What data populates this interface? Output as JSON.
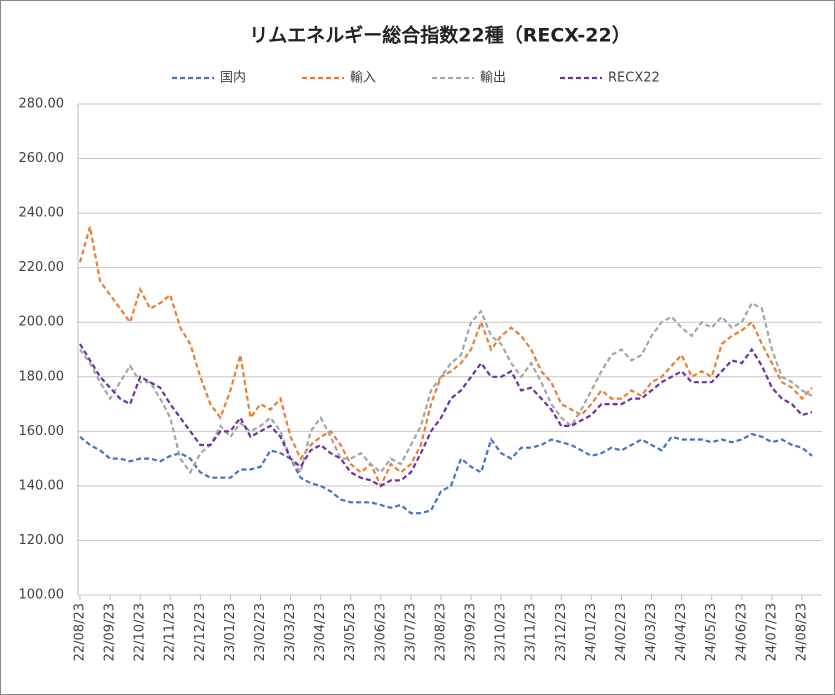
{
  "chart_data": {
    "type": "line",
    "title": "リムエネルギー総合指数22種（RECX-22）",
    "categories": [
      "22/08/23",
      null,
      null,
      "22/09/23",
      null,
      null,
      "22/10/23",
      null,
      null,
      "22/11/23",
      null,
      null,
      "22/12/23",
      null,
      null,
      "23/01/23",
      null,
      null,
      "23/02/23",
      null,
      null,
      "23/03/23",
      null,
      null,
      "23/04/23",
      null,
      null,
      "23/05/23",
      null,
      null,
      "23/06/23",
      null,
      null,
      "23/07/23",
      null,
      null,
      "23/08/23",
      null,
      null,
      "23/09/23",
      null,
      null,
      "23/10/23",
      null,
      null,
      "23/11/23",
      null,
      null,
      "23/12/23",
      null,
      null,
      "24/01/23",
      null,
      null,
      "24/02/23",
      null,
      null,
      "24/03/23",
      null,
      null,
      "24/04/23",
      null,
      null,
      "24/05/23",
      null,
      null,
      "24/06/23",
      null,
      null,
      "24/07/23",
      null,
      null,
      "24/08/23",
      null
    ],
    "series": [
      {
        "name": "国内",
        "color": "#4472c4",
        "values": [
          158,
          155,
          153,
          150,
          150,
          149,
          150,
          150,
          149,
          151,
          152,
          150,
          145,
          143,
          143,
          143,
          146,
          146,
          147,
          153,
          152,
          150,
          143,
          141,
          140,
          138,
          135,
          134,
          134,
          134,
          133,
          132,
          133,
          130,
          130,
          131,
          138,
          140,
          150,
          147,
          145,
          157,
          152,
          150,
          154,
          154,
          155,
          157,
          156,
          155,
          153,
          151,
          152,
          154,
          153,
          155,
          157,
          155,
          153,
          158,
          157,
          157,
          157,
          156,
          157,
          156,
          157,
          159,
          158,
          156,
          157,
          155,
          154,
          151
        ]
      },
      {
        "name": "輸入",
        "color": "#ed7d31",
        "values": [
          222,
          235,
          215,
          210,
          205,
          200,
          212,
          205,
          207,
          210,
          198,
          192,
          180,
          170,
          165,
          175,
          188,
          165,
          170,
          168,
          172,
          158,
          150,
          155,
          158,
          160,
          155,
          148,
          145,
          148,
          140,
          148,
          145,
          148,
          155,
          170,
          180,
          182,
          185,
          190,
          200,
          190,
          195,
          198,
          195,
          190,
          182,
          178,
          170,
          168,
          166,
          170,
          175,
          172,
          172,
          175,
          173,
          178,
          180,
          184,
          188,
          180,
          182,
          180,
          192,
          195,
          197,
          200,
          192,
          185,
          178,
          176,
          172,
          176
        ]
      },
      {
        "name": "輸出",
        "color": "#a5a5a5",
        "values": [
          190,
          185,
          178,
          172,
          178,
          184,
          178,
          178,
          172,
          165,
          150,
          145,
          152,
          155,
          162,
          158,
          163,
          160,
          162,
          165,
          160,
          150,
          145,
          160,
          165,
          158,
          150,
          150,
          152,
          148,
          145,
          150,
          148,
          155,
          162,
          175,
          180,
          185,
          188,
          200,
          204,
          195,
          192,
          185,
          180,
          185,
          178,
          170,
          165,
          162,
          168,
          175,
          182,
          188,
          190,
          186,
          188,
          195,
          200,
          202,
          198,
          195,
          200,
          198,
          202,
          198,
          200,
          207,
          205,
          190,
          180,
          178,
          175,
          173
        ]
      },
      {
        "name": "RECX22",
        "color": "#7030a0",
        "values": [
          192,
          186,
          180,
          176,
          172,
          170,
          180,
          178,
          176,
          170,
          165,
          160,
          155,
          155,
          160,
          160,
          165,
          158,
          160,
          162,
          158,
          150,
          147,
          153,
          155,
          152,
          150,
          145,
          143,
          142,
          140,
          142,
          142,
          145,
          152,
          160,
          165,
          172,
          175,
          180,
          185,
          180,
          180,
          182,
          175,
          176,
          172,
          168,
          162,
          162,
          164,
          166,
          170,
          170,
          170,
          172,
          172,
          175,
          178,
          180,
          182,
          178,
          178,
          178,
          182,
          186,
          185,
          190,
          184,
          176,
          172,
          170,
          166,
          167
        ]
      }
    ],
    "ylim": [
      100,
      280
    ],
    "yticks": [
      {
        "value": 100,
        "label": "100.00"
      },
      {
        "value": 120,
        "label": "120.00"
      },
      {
        "value": 140,
        "label": "140.00"
      },
      {
        "value": 160,
        "label": "160.00"
      },
      {
        "value": 180,
        "label": "180.00"
      },
      {
        "value": 200,
        "label": "200.00"
      },
      {
        "value": 220,
        "label": "220.00"
      },
      {
        "value": 240,
        "label": "240.00"
      },
      {
        "value": 260,
        "label": "260.00"
      },
      {
        "value": 280,
        "label": "280.00"
      }
    ],
    "grid": true,
    "legend": "top"
  }
}
